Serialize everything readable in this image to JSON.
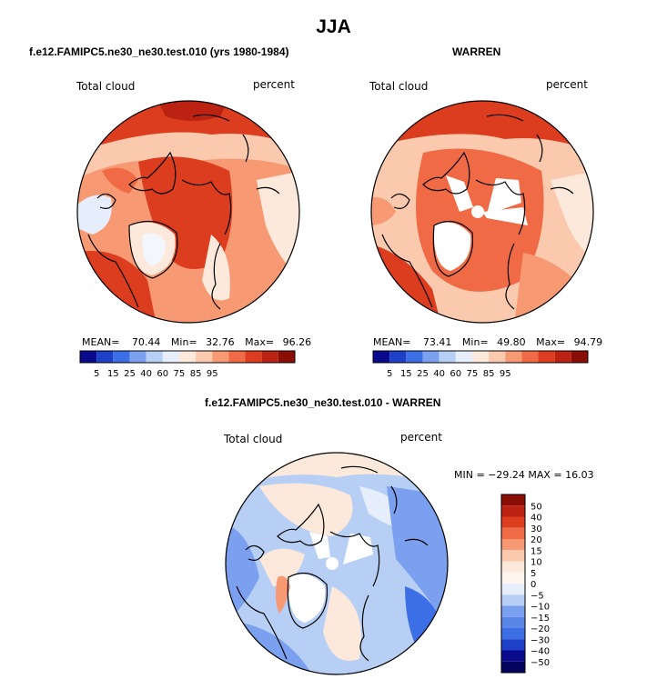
{
  "season_title": "JJA",
  "panels": {
    "model": {
      "title": "f.e12.FAMIPC5.ne30_ne30.test.010 (yrs 1980-1984)",
      "variable": "Total cloud",
      "units": "percent",
      "stats": {
        "mean_label": "MEAN=",
        "mean": "70.44",
        "min_label": "Min=",
        "min": "32.76",
        "max_label": "Max=",
        "max": "96.26"
      }
    },
    "obs": {
      "title": "WARREN",
      "variable": "Total cloud",
      "units": "percent",
      "stats": {
        "mean_label": "MEAN=",
        "mean": "73.41",
        "min_label": "Min=",
        "min": "49.80",
        "max_label": "Max=",
        "max": "94.79"
      }
    },
    "diff": {
      "title": "f.e12.FAMIPC5.ne30_ne30.test.010 - WARREN",
      "variable": "Total cloud",
      "units": "percent",
      "minmax": "MIN = −29.24  MAX =  16.03"
    }
  },
  "abs_colorbar": {
    "labels": [
      "5",
      "15",
      "25",
      "40",
      "60",
      "75",
      "85",
      "95"
    ],
    "colors": [
      "#0a0a8c",
      "#1e3fc8",
      "#3c6ee6",
      "#7aa0ef",
      "#b8cff5",
      "#e6eefb",
      "#fde9dc",
      "#fbc9ad",
      "#f79a74",
      "#f06a45",
      "#dc3d1e",
      "#bb2212",
      "#8b0e06"
    ]
  },
  "diff_colorbar": {
    "labels": [
      "50",
      "40",
      "30",
      "20",
      "15",
      "10",
      "5",
      "0",
      "−5",
      "−10",
      "−15",
      "−20",
      "−30",
      "−40",
      "−50"
    ],
    "colors": [
      "#8b0e06",
      "#bb2212",
      "#dc3d1e",
      "#f06a45",
      "#f79a74",
      "#fbc9ad",
      "#fde9dc",
      "#fff5ee",
      "#e6eefb",
      "#b8cff5",
      "#7aa0ef",
      "#5a86e8",
      "#3c6ee6",
      "#1e3fc8",
      "#0a0a8c",
      "#05055f"
    ]
  }
}
